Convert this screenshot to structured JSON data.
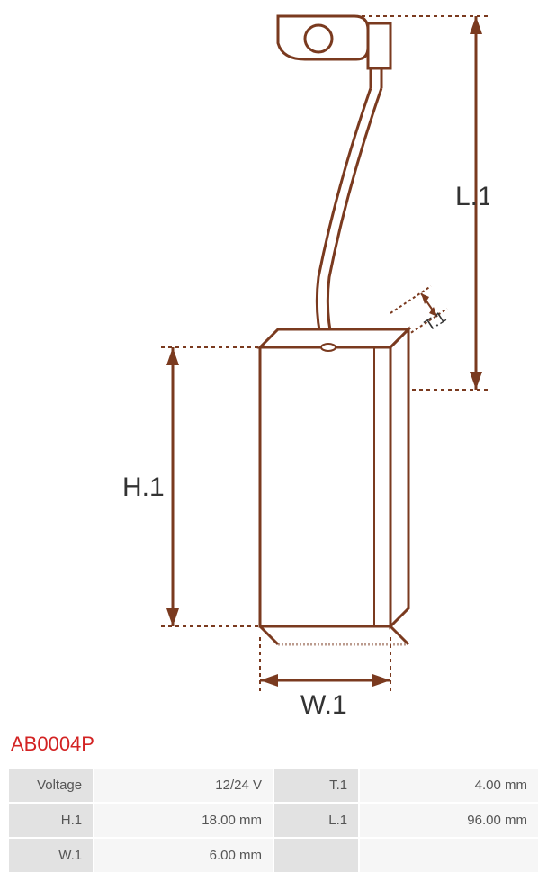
{
  "product": {
    "code": "AB0004P"
  },
  "diagram": {
    "labels": {
      "H1": "H.1",
      "W1": "W.1",
      "L1": "L.1",
      "T1": "T.1"
    },
    "colors": {
      "stroke": "#7a3a1f",
      "dashed": "#7a3a1f",
      "fill": "#ffffff"
    }
  },
  "specs": {
    "rows": [
      {
        "label1": "Voltage",
        "value1": "12/24 V",
        "label2": "T.1",
        "value2": "4.00 mm"
      },
      {
        "label1": "H.1",
        "value1": "18.00 mm",
        "label2": "L.1",
        "value2": "96.00 mm"
      },
      {
        "label1": "W.1",
        "value1": "6.00 mm",
        "label2": "",
        "value2": ""
      }
    ]
  }
}
